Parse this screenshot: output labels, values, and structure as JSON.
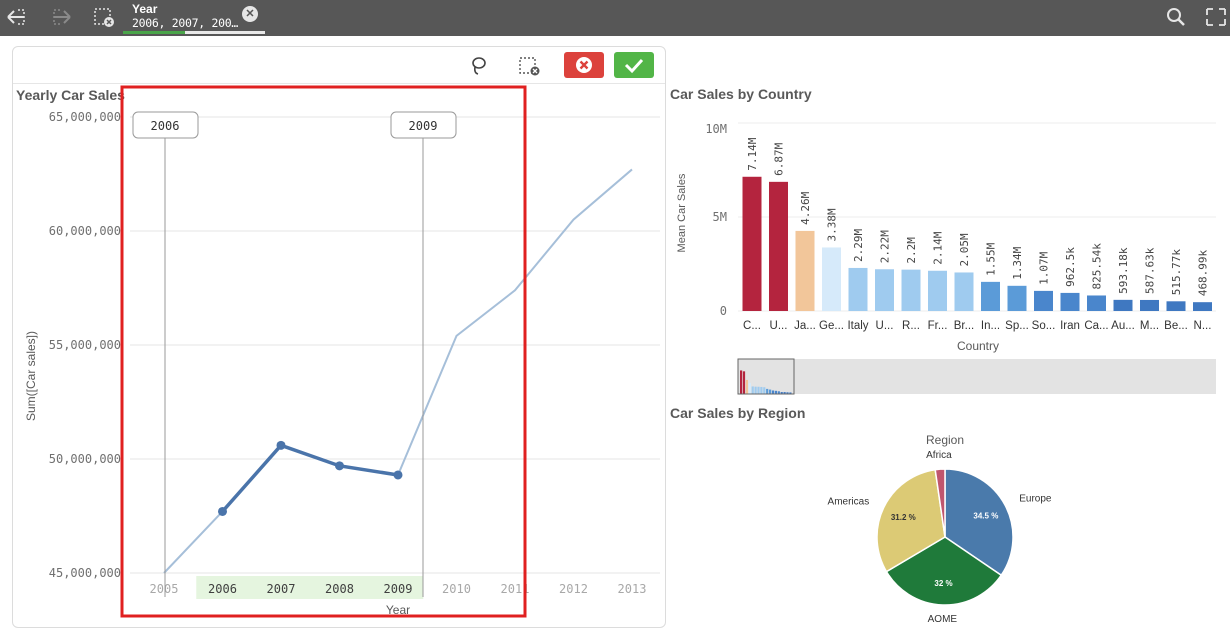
{
  "toolbar": {
    "icons": [
      "step-back-icon",
      "step-forward-icon",
      "clear-selections-icon",
      "search-icon",
      "selections-tool-icon"
    ]
  },
  "selection": {
    "field": "Year",
    "values": "2006, 2007, 200…",
    "clear_icon": "close-circle-icon"
  },
  "line_panel": {
    "title": "Yearly Car Sales",
    "tools": [
      "lasso-icon",
      "clear-selection-icon",
      "cancel-icon",
      "confirm-icon"
    ],
    "range_start_label": "2006",
    "range_end_label": "2009",
    "colors": {
      "line": "#4a74aa",
      "selection_band": "#e5f5df",
      "highlight_box": "#e02020",
      "cancel": "#dc423c",
      "confirm": "#52b547"
    }
  },
  "country_panel": {
    "title": "Car Sales by Country"
  },
  "region_panel": {
    "title": "Car Sales by Region"
  },
  "chart_data": [
    {
      "type": "line",
      "xlabel": "Year",
      "ylabel": "Sum([Car sales])",
      "x": [
        "2005",
        "2006",
        "2007",
        "2008",
        "2009",
        "2010",
        "2011",
        "2012",
        "2013"
      ],
      "values": [
        45000000,
        47700000,
        50600000,
        49700000,
        49300000,
        55400000,
        57400000,
        60500000,
        62700000
      ],
      "selected": [
        "2006",
        "2007",
        "2008",
        "2009"
      ],
      "yticks": [
        "65,000,000",
        "60,000,000",
        "55,000,000",
        "50,000,000",
        "45,000,000"
      ],
      "ytick_values": [
        65000000,
        60000000,
        55000000,
        50000000,
        45000000
      ],
      "ylim": [
        44500000,
        66000000
      ]
    },
    {
      "type": "bar",
      "xlabel": "Country",
      "ylabel": "Mean Car Sales",
      "categories": [
        "C...",
        "U...",
        "Ja...",
        "Ge...",
        "Italy",
        "U...",
        "R...",
        "Fr...",
        "Br...",
        "In...",
        "Sp...",
        "So...",
        "Iran",
        "Ca...",
        "Au...",
        "M...",
        "Be...",
        "N..."
      ],
      "values": [
        7140000,
        6870000,
        4260000,
        3380000,
        2290000,
        2220000,
        2200000,
        2140000,
        2050000,
        1550000,
        1340000,
        1070000,
        962500,
        825540,
        593180,
        587630,
        515770,
        468990
      ],
      "data_labels": [
        "7.14M",
        "6.87M",
        "4.26M",
        "3.38M",
        "2.29M",
        "2.22M",
        "2.2M",
        "2.14M",
        "2.05M",
        "1.55M",
        "1.34M",
        "1.07M",
        "962.5k",
        "825.54k",
        "593.18k",
        "587.63k",
        "515.77k",
        "468.99k"
      ],
      "colors": [
        "#b4243e",
        "#b4243e",
        "#f2c69a",
        "#d6eafa",
        "#9fcbef",
        "#9fcbef",
        "#9fcbef",
        "#9fcbef",
        "#9fcbef",
        "#5b9bd8",
        "#5b9bd8",
        "#4a86cc",
        "#4a86cc",
        "#4a86cc",
        "#3f78c1",
        "#3f78c1",
        "#3f78c1",
        "#3f78c1"
      ],
      "yticks": [
        "10M",
        "5M",
        "0"
      ],
      "ytick_values": [
        10000000,
        5000000,
        0
      ],
      "ylim": [
        0,
        10000000
      ]
    },
    {
      "type": "pie",
      "title": "Region",
      "categories": [
        "Europe",
        "AOME",
        "Americas",
        "Africa"
      ],
      "values": [
        34.5,
        32,
        31.2,
        2.3
      ],
      "data_labels": [
        "34.5 %",
        "32 %",
        "31.2 %",
        ""
      ],
      "colors": [
        "#4a7aab",
        "#1f7a3a",
        "#dcca75",
        "#c0566e"
      ]
    }
  ]
}
